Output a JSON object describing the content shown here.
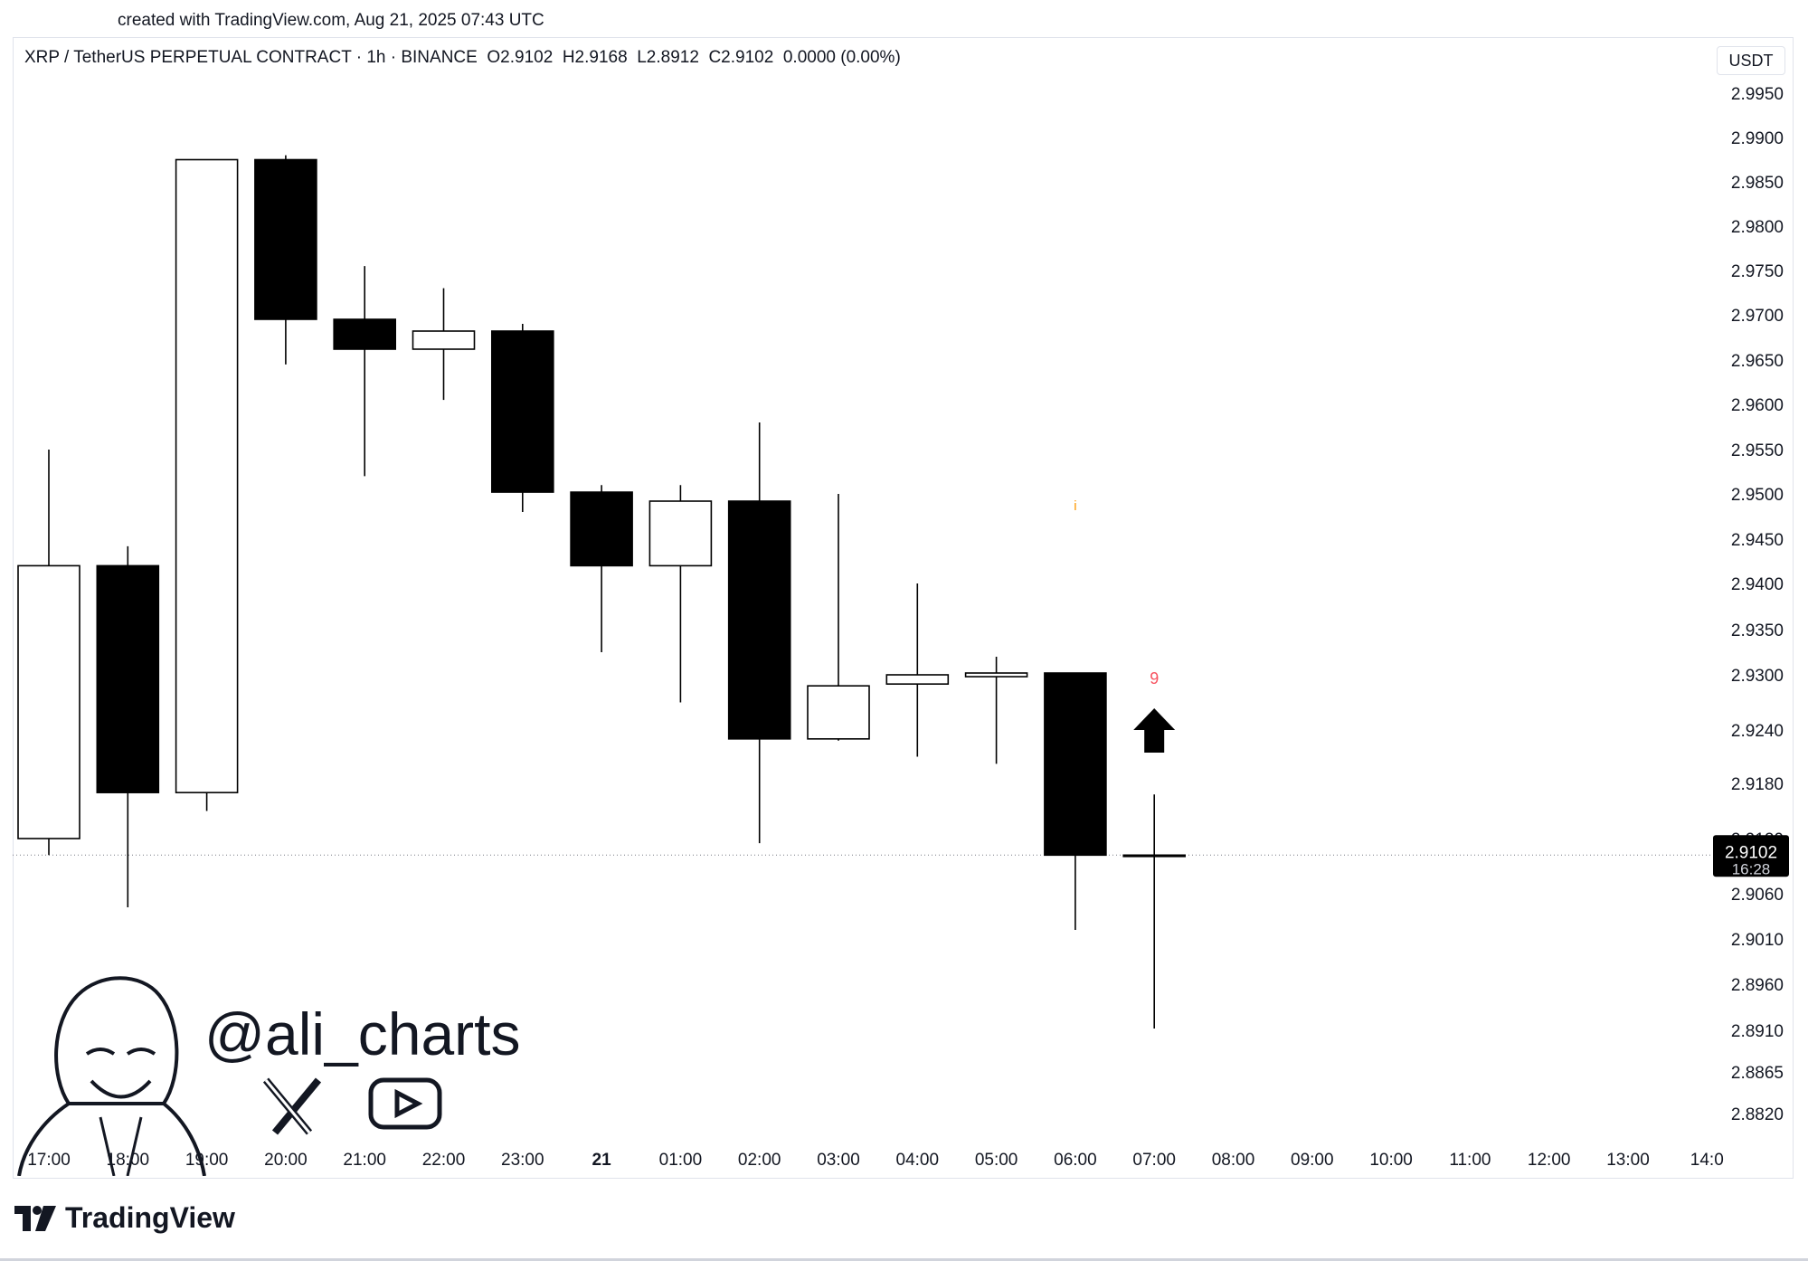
{
  "created_text": "created with TradingView.com, Aug 21, 2025 07:43 UTC",
  "legend_text": "XRP / TetherUS PERPETUAL CONTRACT · 1h · BINANCE  O2.9102  H2.9168  L2.8912  C2.9102  0.0000 (0.00%)",
  "unit_label": "USDT",
  "brand": "TradingView",
  "handle": "@ali_charts",
  "colors": {
    "up_fill": "#ffffff",
    "down_fill": "#000000",
    "wick": "#000000",
    "grid": "none",
    "price_tag_bg": "#000000"
  },
  "chart_data": {
    "type": "candlestick",
    "symbol": "XRP / TetherUS PERPETUAL CONTRACT",
    "interval": "1h",
    "exchange": "BINANCE",
    "x_labels": [
      "17:00",
      "18:00",
      "19:00",
      "20:00",
      "21:00",
      "22:00",
      "23:00",
      "21",
      "01:00",
      "02:00",
      "03:00",
      "04:00",
      "05:00",
      "06:00",
      "07:00",
      "08:00",
      "09:00",
      "10:00",
      "11:00",
      "12:00",
      "13:00",
      "14:0"
    ],
    "y_ticks": [
      "2.9950",
      "2.9900",
      "2.9850",
      "2.9800",
      "2.9750",
      "2.9700",
      "2.9650",
      "2.9600",
      "2.9550",
      "2.9500",
      "2.9450",
      "2.9400",
      "2.9350",
      "2.9300",
      "2.9240",
      "2.9180",
      "2.9120",
      "2.9060",
      "2.9010",
      "2.8960",
      "2.8910",
      "2.8865",
      "2.8820"
    ],
    "candles": [
      {
        "time": "17:00",
        "open": 2.912,
        "high": 2.955,
        "low": 2.9102,
        "close": 2.942
      },
      {
        "time": "18:00",
        "open": 2.942,
        "high": 2.9442,
        "low": 2.9045,
        "close": 2.917
      },
      {
        "time": "19:00",
        "open": 2.917,
        "high": 2.9875,
        "low": 2.915,
        "close": 2.9875
      },
      {
        "time": "20:00",
        "open": 2.9875,
        "high": 2.988,
        "low": 2.9645,
        "close": 2.9695
      },
      {
        "time": "21:00",
        "open": 2.9695,
        "high": 2.9755,
        "low": 2.952,
        "close": 2.9662
      },
      {
        "time": "22:00",
        "open": 2.9662,
        "high": 2.973,
        "low": 2.9605,
        "close": 2.9682
      },
      {
        "time": "23:00",
        "open": 2.9682,
        "high": 2.969,
        "low": 2.948,
        "close": 2.9502
      },
      {
        "time": "21",
        "open": 2.9502,
        "high": 2.951,
        "low": 2.9325,
        "close": 2.942
      },
      {
        "time": "01:00",
        "open": 2.942,
        "high": 2.951,
        "low": 2.927,
        "close": 2.9492
      },
      {
        "time": "02:00",
        "open": 2.9492,
        "high": 2.958,
        "low": 2.9115,
        "close": 2.923
      },
      {
        "time": "03:00",
        "open": 2.923,
        "high": 2.95,
        "low": 2.9228,
        "close": 2.9288
      },
      {
        "time": "04:00",
        "open": 2.929,
        "high": 2.94,
        "low": 2.921,
        "close": 2.93
      },
      {
        "time": "05:00",
        "open": 2.9298,
        "high": 2.932,
        "low": 2.9202,
        "close": 2.9302
      },
      {
        "time": "06:00",
        "open": 2.9302,
        "high": 2.9302,
        "low": 2.902,
        "close": 2.9102
      },
      {
        "time": "07:00",
        "open": 2.9102,
        "high": 2.9168,
        "low": 2.8912,
        "close": 2.9102
      }
    ],
    "annotations": [
      {
        "text": "9",
        "time": "07:00",
        "price": 2.929,
        "color": "#f7525f"
      },
      {
        "text": "i",
        "time": "06:00",
        "price": 2.9482,
        "color": "#ff9800"
      },
      {
        "type": "arrow-up",
        "time": "07:00",
        "price": 2.924
      }
    ],
    "last_price": "2.9102",
    "countdown": "16:28"
  }
}
